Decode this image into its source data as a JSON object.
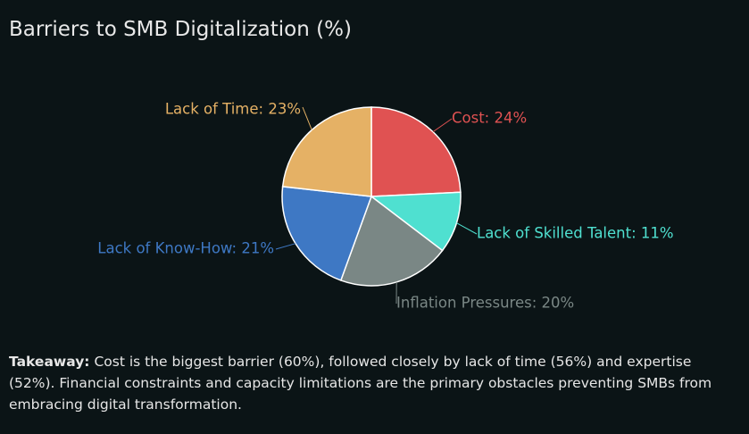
{
  "title": "Barriers to SMB Digitalization (%)",
  "chart_data": {
    "type": "pie",
    "series": [
      {
        "label": "Cost",
        "value": 24,
        "color": "#e05252",
        "display": "Cost: 24%"
      },
      {
        "label": "Lack of Skilled Talent",
        "value": 11,
        "color": "#4fe0d0",
        "display": "Lack of Skilled Talent: 11%"
      },
      {
        "label": "Inflation Pressures",
        "value": 20,
        "color": "#7a8785",
        "display": "Inflation Pressures: 20%"
      },
      {
        "label": "Lack of Know-How",
        "value": 21,
        "color": "#3e78c4",
        "display": "Lack of Know-How: 21%"
      },
      {
        "label": "Lack of Time",
        "value": 23,
        "color": "#e5b165",
        "display": "Lack of Time: 23%"
      }
    ]
  },
  "takeaway": {
    "label": "Takeaway:",
    "text": " Cost is the biggest barrier (60%), followed closely by lack of time (56%) and expertise (52%). Financial constraints and capacity limitations are the primary obstacles preventing SMBs from embracing digital transformation."
  }
}
